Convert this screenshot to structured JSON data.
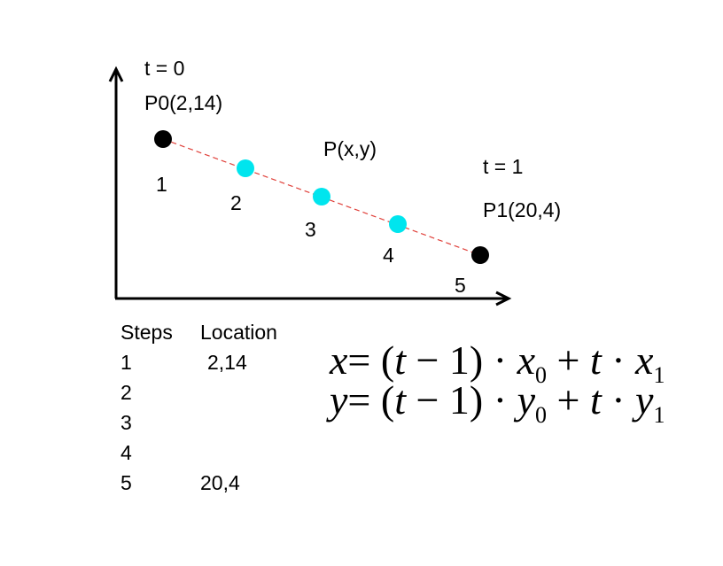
{
  "points": {
    "start": {
      "t_label": "t = 0",
      "label": "P0(2,14)",
      "x": 2,
      "y": 14,
      "color": "#000000"
    },
    "end": {
      "t_label": "t = 1",
      "label": "P1(20,4)",
      "x": 20,
      "y": 4,
      "color": "#000000"
    },
    "general_label": "P(x,y)",
    "intermediate_color": "#00e5ee",
    "line_color": "#e0403a"
  },
  "step_numbers": [
    "1",
    "2",
    "3",
    "4",
    "5"
  ],
  "table": {
    "headers": [
      "Steps",
      "Location"
    ],
    "rows": [
      [
        "1",
        "2,14"
      ],
      [
        "2",
        ""
      ],
      [
        "3",
        ""
      ],
      [
        "4",
        ""
      ],
      [
        "5",
        "20,4"
      ]
    ]
  },
  "equations": {
    "x": {
      "lhs": "x",
      "open": "= (",
      "t1": "t",
      "minus": " − 1) · ",
      "var0": "x",
      "sub0": "0",
      "plus": " + ",
      "t2": "t",
      "dot": " · ",
      "var1": "x",
      "sub1": "1"
    },
    "y": {
      "lhs": "y",
      "open": "= (",
      "t1": "t",
      "minus": " − 1) · ",
      "var0": "y",
      "sub0": "0",
      "plus": " + ",
      "t2": "t",
      "dot": " · ",
      "var1": "y",
      "sub1": "1"
    }
  }
}
